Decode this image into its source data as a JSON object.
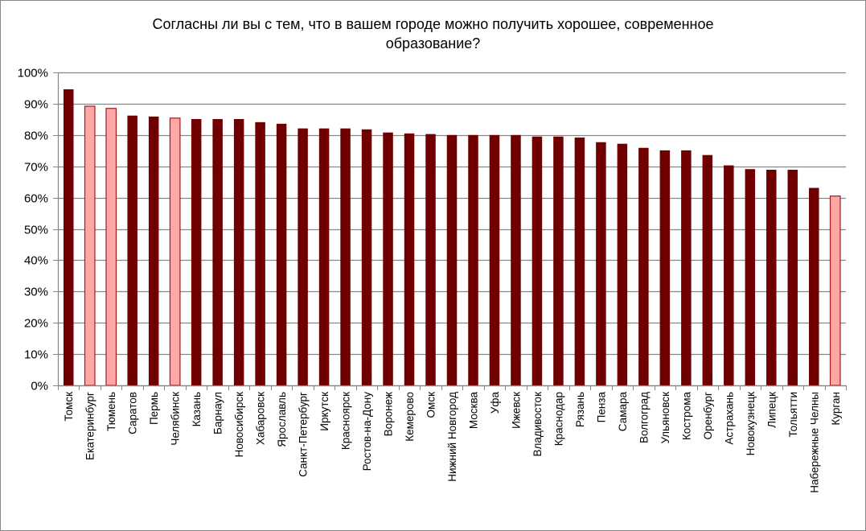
{
  "chart_data": {
    "type": "bar",
    "title": "Согласны ли вы с тем, что в вашем городе можно получить хорошее, современное образование?",
    "title_lines": [
      "Согласны ли вы с тем, что в вашем городе можно получить хорошее, современное",
      "образование?"
    ],
    "xlabel": "",
    "ylabel": "",
    "ylim": [
      0,
      100
    ],
    "yticks": [
      "0%",
      "10%",
      "20%",
      "30%",
      "40%",
      "50%",
      "60%",
      "70%",
      "80%",
      "90%",
      "100%"
    ],
    "grid": true,
    "legend": null,
    "categories": [
      "Томск",
      "Екатеринбург",
      "Тюмень",
      "Саратов",
      "Пермь",
      "Челябинск",
      "Казань",
      "Барнаул",
      "Новосибирск",
      "Хабаровск",
      "Ярославль",
      "Санкт-Петербург",
      "Иркутск",
      "Красноярск",
      "Ростов-на-Дону",
      "Воронеж",
      "Кемерово",
      "Омск",
      "Нижний Новгород",
      "Москва",
      "Уфа",
      "Ижевск",
      "Владивосток",
      "Краснодар",
      "Рязань",
      "Пенза",
      "Самара",
      "Волгоград",
      "Ульяновск",
      "Кострома",
      "Оренбург",
      "Астрахань",
      "Новокузнецк",
      "Липецк",
      "Тольятти",
      "Набережные  Челны",
      "Курган"
    ],
    "values": [
      94.6,
      89.2,
      88.5,
      86.2,
      85.9,
      85.4,
      85.1,
      85.1,
      85.1,
      84.1,
      83.6,
      82.1,
      82.1,
      82.1,
      81.8,
      80.8,
      80.5,
      80.3,
      80.0,
      80.0,
      80.0,
      80.0,
      79.5,
      79.5,
      79.2,
      77.7,
      77.2,
      75.9,
      75.1,
      75.1,
      73.6,
      70.3,
      69.1,
      68.9,
      68.9,
      63.1,
      60.5
    ],
    "highlighted": [
      false,
      true,
      true,
      false,
      false,
      true,
      false,
      false,
      false,
      false,
      false,
      false,
      false,
      false,
      false,
      false,
      false,
      false,
      false,
      false,
      false,
      false,
      false,
      false,
      false,
      false,
      false,
      false,
      false,
      false,
      false,
      false,
      false,
      false,
      false,
      false,
      true
    ],
    "colors": {
      "bar": "#700000",
      "bar_highlight": "#FFA6A6",
      "bar_highlight_border": "#A01C1C",
      "grid": "#868686",
      "axis": "#868686"
    }
  }
}
